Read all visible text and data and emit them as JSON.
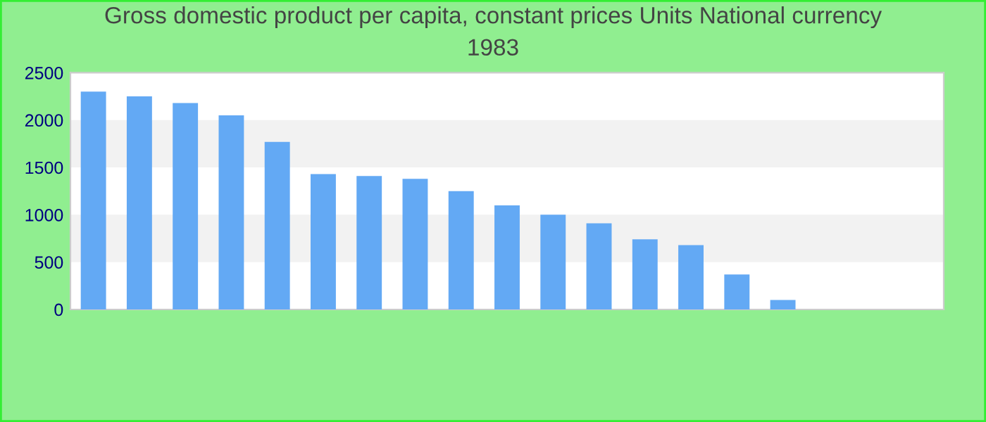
{
  "chart_data": {
    "type": "bar",
    "title": "Gross domestic product per capita, constant prices Units National currency\n1983",
    "categories": [
      null,
      null,
      null,
      null,
      null,
      null,
      null,
      null,
      null,
      null,
      null,
      null,
      null,
      null,
      null,
      null,
      null,
      null,
      null
    ],
    "values": [
      2300,
      2250,
      2180,
      2050,
      1770,
      1430,
      1410,
      1380,
      1250,
      1100,
      1000,
      910,
      740,
      680,
      370,
      100,
      null,
      null,
      null
    ],
    "color": "#63a9f4",
    "ylim": [
      0,
      2500
    ],
    "yticks": [
      0,
      500,
      1000,
      1500,
      2000,
      2500
    ],
    "bands": [
      {
        "axis": "y",
        "from": 500,
        "to": 1000,
        "color": "#f2f2f2"
      },
      {
        "axis": "y",
        "from": 1500,
        "to": 2000,
        "color": "#f2f2f2"
      }
    ],
    "tick_labels": "y",
    "grid": false,
    "legend": false
  }
}
